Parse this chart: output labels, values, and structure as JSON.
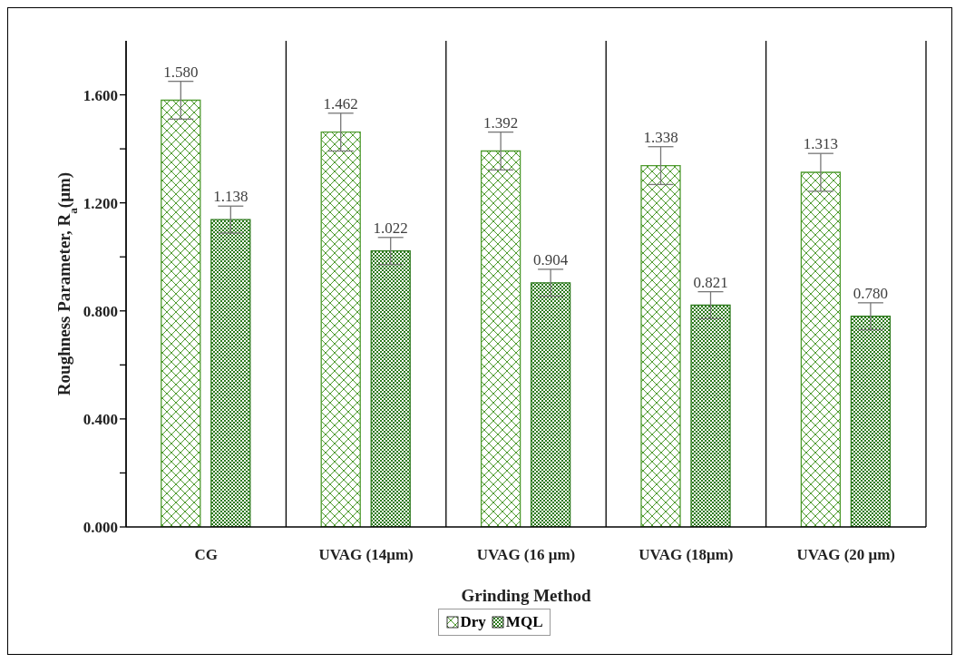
{
  "chart_data": {
    "type": "bar",
    "xlabel": "Grinding Method",
    "ylabel": "Roughness Parameter, R$_{a}$(μm)",
    "categories": [
      "CG",
      "UVAG (14μm)",
      "UVAG (16 μm)",
      "UVAG (18μm)",
      "UVAG (20 μm)"
    ],
    "series": [
      {
        "name": "Dry",
        "color": "#4e9a2e",
        "values": [
          1.58,
          1.462,
          1.392,
          1.338,
          1.313
        ],
        "value_labels": [
          "1.580",
          "1.462",
          "1.392",
          "1.338",
          "1.313"
        ],
        "errors": [
          0.07,
          0.07,
          0.07,
          0.07,
          0.07
        ]
      },
      {
        "name": "MQL",
        "color": "#2d7a1c",
        "values": [
          1.138,
          1.022,
          0.904,
          0.821,
          0.78
        ],
        "value_labels": [
          "1.138",
          "1.022",
          "0.904",
          "0.821",
          "0.780"
        ],
        "errors": [
          0.05,
          0.05,
          0.05,
          0.05,
          0.05
        ]
      }
    ],
    "ylim": [
      0,
      1.8
    ],
    "yticks": [
      {
        "value": 0,
        "label": "0.000"
      },
      {
        "value": 0.2,
        "label": null
      },
      {
        "value": 0.4,
        "label": "0.400"
      },
      {
        "value": 0.6,
        "label": null
      },
      {
        "value": 0.8,
        "label": "0.800"
      },
      {
        "value": 1.0,
        "label": null
      },
      {
        "value": 1.2,
        "label": "1.200"
      },
      {
        "value": 1.4,
        "label": null
      },
      {
        "value": 1.6,
        "label": "1.600"
      }
    ],
    "grid": "x",
    "legend": "bottom"
  }
}
